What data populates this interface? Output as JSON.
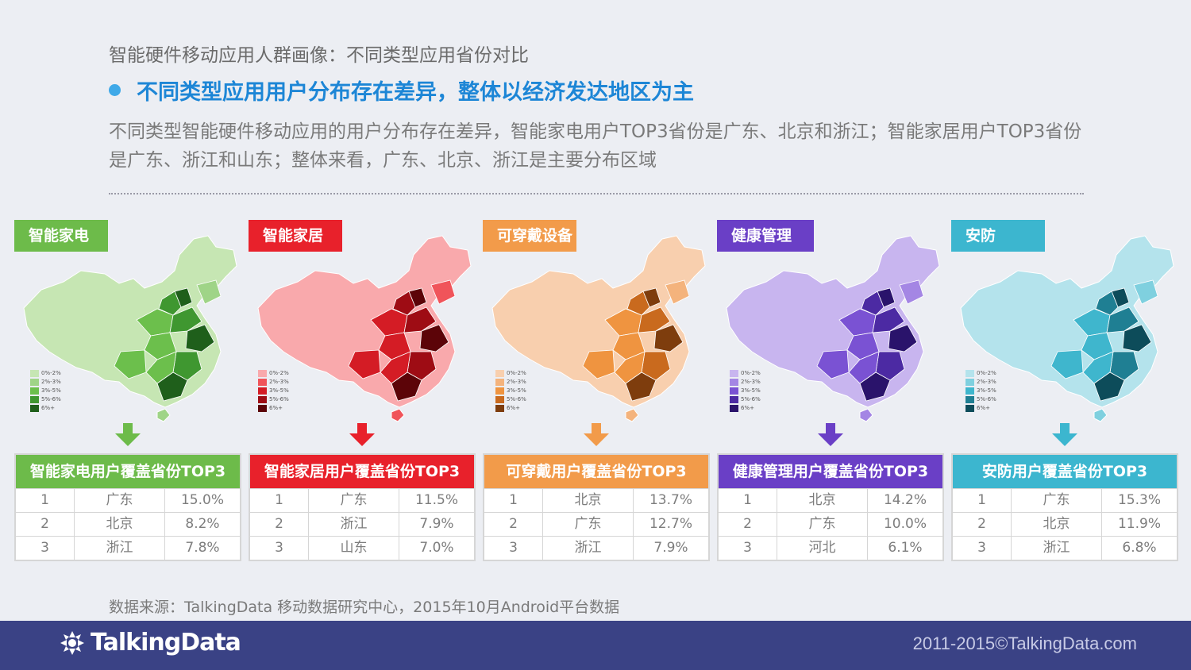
{
  "page_title": "智能硬件移动应用人群画像：不同类型应用省份对比",
  "headline": "不同类型应用用户分布存在差异，整体以经济发达地区为主",
  "description": "不同类型智能硬件移动应用的用户分布存在差异，智能家电用户TOP3省份是广东、北京和浙江；智能家居用户TOP3省份是广东、浙江和山东；整体来看，广东、北京、浙江是主要分布区域",
  "legend_labels": [
    "0%-2%",
    "2%-3%",
    "3%-5%",
    "5%-6%",
    "6%+"
  ],
  "panels": [
    {
      "tag": "智能家电",
      "table_title": "智能家电用户覆盖省份TOP3",
      "accent": "#6dbb4a",
      "scale": [
        "#c6e6b3",
        "#9fd487",
        "#6cbf4c",
        "#3f9730",
        "#1f5f1b"
      ],
      "rows": [
        {
          "rank": "1",
          "province": "广东",
          "pct": "15.0%"
        },
        {
          "rank": "2",
          "province": "北京",
          "pct": "8.2%"
        },
        {
          "rank": "3",
          "province": "浙江",
          "pct": "7.8%"
        }
      ]
    },
    {
      "tag": "智能家居",
      "table_title": "智能家居用户覆盖省份TOP3",
      "accent": "#e8212b",
      "scale": [
        "#f9a9ac",
        "#f0545a",
        "#d41c25",
        "#9e0c14",
        "#5c0408"
      ],
      "rows": [
        {
          "rank": "1",
          "province": "广东",
          "pct": "11.5%"
        },
        {
          "rank": "2",
          "province": "浙江",
          "pct": "7.9%"
        },
        {
          "rank": "3",
          "province": "山东",
          "pct": "7.0%"
        }
      ]
    },
    {
      "tag": "可穿戴设备",
      "table_title": "可穿戴用户覆盖省份TOP3",
      "accent": "#f29b4a",
      "scale": [
        "#f8cfae",
        "#f4b37c",
        "#ef9440",
        "#c96a1e",
        "#7e3d0d"
      ],
      "rows": [
        {
          "rank": "1",
          "province": "北京",
          "pct": "13.7%"
        },
        {
          "rank": "2",
          "province": "广东",
          "pct": "12.7%"
        },
        {
          "rank": "3",
          "province": "浙江",
          "pct": "7.9%"
        }
      ]
    },
    {
      "tag": "健康管理",
      "table_title": "健康管理用户覆盖省份TOP3",
      "accent": "#6a3fc6",
      "scale": [
        "#c8b5ef",
        "#a486e4",
        "#7a52d3",
        "#4c2aa3",
        "#2a136b"
      ],
      "rows": [
        {
          "rank": "1",
          "province": "北京",
          "pct": "14.2%"
        },
        {
          "rank": "2",
          "province": "广东",
          "pct": "10.0%"
        },
        {
          "rank": "3",
          "province": "河北",
          "pct": "6.1%"
        }
      ]
    },
    {
      "tag": "安防",
      "table_title": "安防用户覆盖省份TOP3",
      "accent": "#3cb6cf",
      "scale": [
        "#b4e3ec",
        "#7fd0df",
        "#3fb6cd",
        "#1f7f93",
        "#0d4c5a"
      ],
      "rows": [
        {
          "rank": "1",
          "province": "广东",
          "pct": "15.3%"
        },
        {
          "rank": "2",
          "province": "北京",
          "pct": "11.9%"
        },
        {
          "rank": "3",
          "province": "浙江",
          "pct": "6.8%"
        }
      ]
    }
  ],
  "source": "数据来源：TalkingData 移动数据研究中心，2015年10月Android平台数据",
  "footer": {
    "brand": "TalkingData",
    "copyright": "2011-2015©TalkingData.com"
  }
}
